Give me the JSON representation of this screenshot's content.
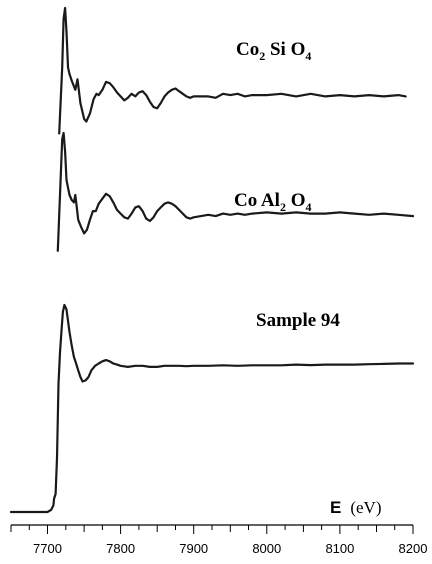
{
  "chart_data": {
    "type": "line",
    "title": "",
    "xlabel": {
      "symbol": "E",
      "unit": "(eV)"
    },
    "ylabel": "",
    "xlim": [
      7650,
      8200
    ],
    "xticks": [
      "7700",
      "7800",
      "7900",
      "8000",
      "8100",
      "8200"
    ],
    "grid": false,
    "legend": "none",
    "series_labels": [
      {
        "parts": [
          [
            "Co",
            ""
          ],
          [
            "2",
            "sub"
          ],
          [
            " Si O",
            ""
          ],
          [
            "4",
            "sub"
          ]
        ]
      },
      {
        "parts": [
          [
            "Co Al",
            ""
          ],
          [
            "2",
            "sub"
          ],
          [
            " O",
            ""
          ],
          [
            "4",
            "sub"
          ]
        ]
      },
      {
        "parts": [
          [
            "Sample 94",
            ""
          ]
        ]
      }
    ],
    "series": [
      {
        "points": [
          [
            7716,
            0.05
          ],
          [
            7720,
            0.55
          ],
          [
            7722,
            0.92
          ],
          [
            7724,
            1.0
          ],
          [
            7726,
            0.82
          ],
          [
            7728,
            0.55
          ],
          [
            7730,
            0.5
          ],
          [
            7733,
            0.45
          ],
          [
            7738,
            0.38
          ],
          [
            7741,
            0.46
          ],
          [
            7745,
            0.28
          ],
          [
            7750,
            0.16
          ],
          [
            7753,
            0.14
          ],
          [
            7758,
            0.2
          ],
          [
            7763,
            0.31
          ],
          [
            7767,
            0.35
          ],
          [
            7770,
            0.34
          ],
          [
            7775,
            0.38
          ],
          [
            7780,
            0.44
          ],
          [
            7785,
            0.43
          ],
          [
            7790,
            0.4
          ],
          [
            7795,
            0.36
          ],
          [
            7800,
            0.33
          ],
          [
            7805,
            0.3
          ],
          [
            7810,
            0.32
          ],
          [
            7815,
            0.35
          ],
          [
            7820,
            0.33
          ],
          [
            7825,
            0.36
          ],
          [
            7830,
            0.37
          ],
          [
            7835,
            0.34
          ],
          [
            7840,
            0.29
          ],
          [
            7845,
            0.25
          ],
          [
            7850,
            0.24
          ],
          [
            7855,
            0.28
          ],
          [
            7860,
            0.33
          ],
          [
            7865,
            0.36
          ],
          [
            7870,
            0.38
          ],
          [
            7875,
            0.39
          ],
          [
            7880,
            0.37
          ],
          [
            7885,
            0.35
          ],
          [
            7890,
            0.33
          ],
          [
            7895,
            0.32
          ],
          [
            7900,
            0.33
          ],
          [
            7910,
            0.33
          ],
          [
            7920,
            0.33
          ],
          [
            7930,
            0.32
          ],
          [
            7940,
            0.35
          ],
          [
            7950,
            0.34
          ],
          [
            7960,
            0.35
          ],
          [
            7970,
            0.33
          ],
          [
            7980,
            0.34
          ],
          [
            7990,
            0.34
          ],
          [
            8000,
            0.34
          ],
          [
            8020,
            0.35
          ],
          [
            8040,
            0.33
          ],
          [
            8060,
            0.35
          ],
          [
            8080,
            0.33
          ],
          [
            8100,
            0.34
          ],
          [
            8120,
            0.33
          ],
          [
            8140,
            0.34
          ],
          [
            8160,
            0.33
          ],
          [
            8180,
            0.34
          ],
          [
            8190,
            0.33
          ]
        ]
      },
      {
        "points": [
          [
            7714,
            0.05
          ],
          [
            7717,
            0.5
          ],
          [
            7720,
            0.95
          ],
          [
            7722,
            1.0
          ],
          [
            7724,
            0.85
          ],
          [
            7726,
            0.62
          ],
          [
            7728,
            0.56
          ],
          [
            7730,
            0.5
          ],
          [
            7733,
            0.46
          ],
          [
            7736,
            0.44
          ],
          [
            7738,
            0.5
          ],
          [
            7740,
            0.4
          ],
          [
            7742,
            0.3
          ],
          [
            7746,
            0.24
          ],
          [
            7750,
            0.19
          ],
          [
            7754,
            0.22
          ],
          [
            7758,
            0.3
          ],
          [
            7762,
            0.37
          ],
          [
            7766,
            0.37
          ],
          [
            7770,
            0.43
          ],
          [
            7775,
            0.47
          ],
          [
            7780,
            0.51
          ],
          [
            7785,
            0.49
          ],
          [
            7790,
            0.44
          ],
          [
            7795,
            0.38
          ],
          [
            7800,
            0.35
          ],
          [
            7805,
            0.32
          ],
          [
            7810,
            0.31
          ],
          [
            7815,
            0.35
          ],
          [
            7820,
            0.4
          ],
          [
            7825,
            0.41
          ],
          [
            7830,
            0.37
          ],
          [
            7835,
            0.31
          ],
          [
            7840,
            0.29
          ],
          [
            7845,
            0.32
          ],
          [
            7850,
            0.37
          ],
          [
            7855,
            0.4
          ],
          [
            7860,
            0.43
          ],
          [
            7865,
            0.44
          ],
          [
            7870,
            0.43
          ],
          [
            7875,
            0.41
          ],
          [
            7880,
            0.38
          ],
          [
            7885,
            0.35
          ],
          [
            7890,
            0.32
          ],
          [
            7895,
            0.31
          ],
          [
            7900,
            0.32
          ],
          [
            7910,
            0.33
          ],
          [
            7920,
            0.34
          ],
          [
            7930,
            0.33
          ],
          [
            7940,
            0.35
          ],
          [
            7950,
            0.34
          ],
          [
            7960,
            0.35
          ],
          [
            7970,
            0.34
          ],
          [
            7980,
            0.35
          ],
          [
            8000,
            0.36
          ],
          [
            8020,
            0.35
          ],
          [
            8040,
            0.36
          ],
          [
            8060,
            0.35
          ],
          [
            8080,
            0.35
          ],
          [
            8100,
            0.36
          ],
          [
            8120,
            0.35
          ],
          [
            8140,
            0.34
          ],
          [
            8160,
            0.35
          ],
          [
            8180,
            0.34
          ],
          [
            8200,
            0.33
          ]
        ]
      },
      {
        "points": [
          [
            7650,
            0.0
          ],
          [
            7680,
            0.0
          ],
          [
            7700,
            0.0
          ],
          [
            7705,
            0.01
          ],
          [
            7708,
            0.03
          ],
          [
            7709,
            0.06
          ],
          [
            7711,
            0.08
          ],
          [
            7713,
            0.24
          ],
          [
            7715,
            0.57
          ],
          [
            7717,
            0.71
          ],
          [
            7719,
            0.8
          ],
          [
            7721,
            0.89
          ],
          [
            7723,
            0.92
          ],
          [
            7726,
            0.9
          ],
          [
            7728,
            0.85
          ],
          [
            7730,
            0.8
          ],
          [
            7733,
            0.74
          ],
          [
            7736,
            0.69
          ],
          [
            7739,
            0.66
          ],
          [
            7742,
            0.63
          ],
          [
            7745,
            0.6
          ],
          [
            7748,
            0.58
          ],
          [
            7752,
            0.585
          ],
          [
            7756,
            0.6
          ],
          [
            7760,
            0.63
          ],
          [
            7765,
            0.65
          ],
          [
            7770,
            0.66
          ],
          [
            7775,
            0.67
          ],
          [
            7780,
            0.675
          ],
          [
            7785,
            0.67
          ],
          [
            7790,
            0.66
          ],
          [
            7795,
            0.655
          ],
          [
            7800,
            0.65
          ],
          [
            7810,
            0.645
          ],
          [
            7820,
            0.65
          ],
          [
            7830,
            0.65
          ],
          [
            7840,
            0.645
          ],
          [
            7850,
            0.645
          ],
          [
            7860,
            0.65
          ],
          [
            7870,
            0.65
          ],
          [
            7880,
            0.65
          ],
          [
            7890,
            0.648
          ],
          [
            7900,
            0.65
          ],
          [
            7920,
            0.65
          ],
          [
            7940,
            0.652
          ],
          [
            7960,
            0.65
          ],
          [
            7980,
            0.652
          ],
          [
            8000,
            0.652
          ],
          [
            8020,
            0.652
          ],
          [
            8040,
            0.655
          ],
          [
            8060,
            0.653
          ],
          [
            8080,
            0.655
          ],
          [
            8100,
            0.655
          ],
          [
            8120,
            0.655
          ],
          [
            8140,
            0.657
          ],
          [
            8160,
            0.658
          ],
          [
            8180,
            0.66
          ],
          [
            8200,
            0.66
          ]
        ]
      }
    ]
  }
}
